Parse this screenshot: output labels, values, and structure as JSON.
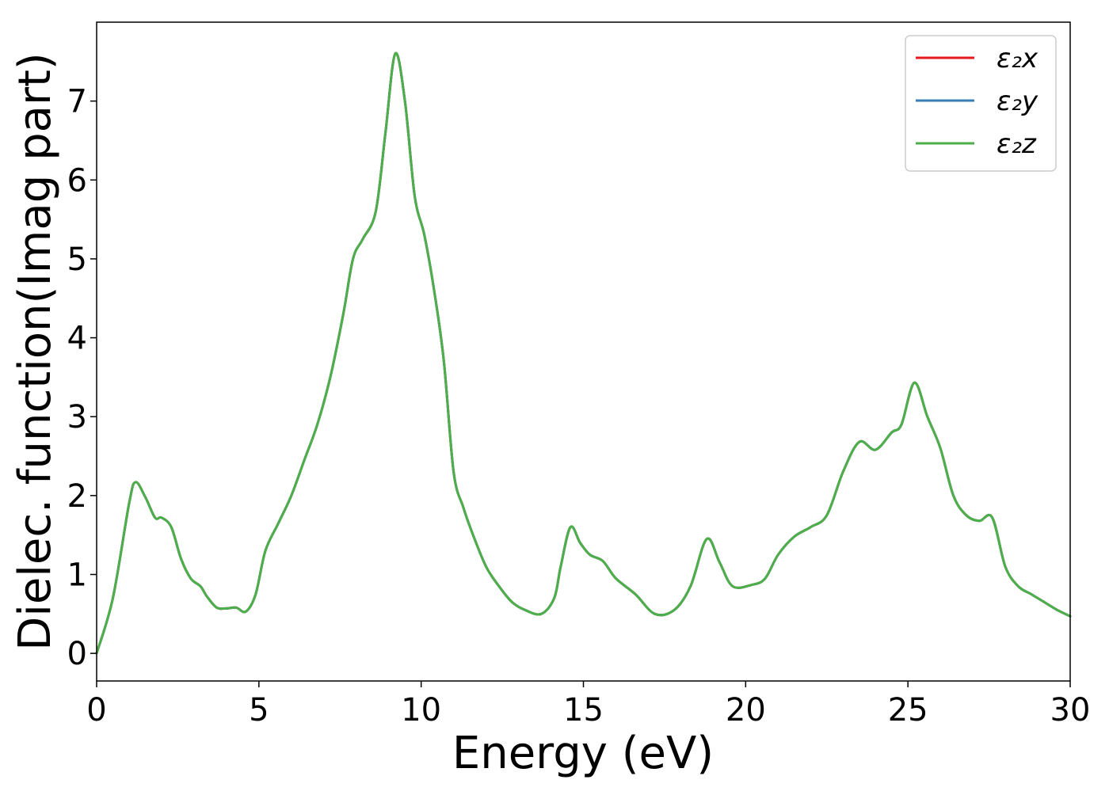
{
  "chart_data": {
    "type": "line",
    "title": "",
    "xlabel": "Energy (eV)",
    "ylabel": "Dielec. function(Imag part)",
    "xlim": [
      0,
      30
    ],
    "ylim": [
      -0.35,
      8.0
    ],
    "xticks": [
      0,
      5,
      10,
      15,
      20,
      25,
      30
    ],
    "yticks": [
      0,
      1,
      2,
      3,
      4,
      5,
      6,
      7
    ],
    "grid": false,
    "legend_position": "top-right",
    "x": [
      0,
      0.5,
      1.0,
      1.2,
      1.5,
      1.8,
      2.0,
      2.3,
      2.6,
      2.9,
      3.2,
      3.4,
      3.7,
      4.0,
      4.3,
      4.6,
      4.9,
      5.2,
      5.6,
      6.0,
      6.4,
      6.8,
      7.2,
      7.6,
      7.9,
      8.2,
      8.6,
      8.9,
      9.2,
      9.5,
      9.8,
      10.1,
      10.4,
      10.7,
      11.0,
      11.3,
      11.6,
      12.0,
      12.4,
      12.8,
      13.2,
      13.7,
      14.1,
      14.3,
      14.6,
      14.9,
      15.2,
      15.6,
      16.0,
      16.6,
      17.2,
      17.8,
      18.3,
      18.8,
      19.2,
      19.6,
      20.2,
      20.6,
      21.0,
      21.5,
      22.0,
      22.5,
      23.0,
      23.5,
      24.0,
      24.5,
      24.8,
      25.2,
      25.6,
      26.0,
      26.4,
      26.8,
      27.2,
      27.6,
      28.0,
      28.4,
      28.8,
      29.2,
      29.6,
      30.0
    ],
    "series": [
      {
        "name": "ε₂x",
        "color": "#e41a1c",
        "values": [
          0.0,
          0.7,
          1.9,
          2.17,
          1.98,
          1.72,
          1.72,
          1.6,
          1.2,
          0.95,
          0.85,
          0.72,
          0.58,
          0.57,
          0.58,
          0.53,
          0.75,
          1.3,
          1.65,
          2.0,
          2.45,
          2.9,
          3.5,
          4.3,
          5.0,
          5.25,
          5.6,
          6.6,
          7.6,
          7.0,
          5.8,
          5.3,
          4.6,
          3.7,
          2.3,
          1.85,
          1.5,
          1.1,
          0.85,
          0.65,
          0.55,
          0.5,
          0.7,
          1.1,
          1.6,
          1.4,
          1.25,
          1.17,
          0.95,
          0.75,
          0.5,
          0.55,
          0.85,
          1.45,
          1.15,
          0.85,
          0.87,
          0.95,
          1.25,
          1.48,
          1.6,
          1.75,
          2.3,
          2.68,
          2.58,
          2.8,
          2.9,
          3.43,
          3.0,
          2.6,
          2.0,
          1.75,
          1.68,
          1.72,
          1.1,
          0.85,
          0.75,
          0.65,
          0.55,
          0.47
        ]
      },
      {
        "name": "ε₂y",
        "color": "#377eb8",
        "values": [
          0.0,
          0.7,
          1.9,
          2.17,
          1.98,
          1.72,
          1.72,
          1.6,
          1.2,
          0.95,
          0.85,
          0.72,
          0.58,
          0.57,
          0.58,
          0.53,
          0.75,
          1.3,
          1.65,
          2.0,
          2.45,
          2.9,
          3.5,
          4.3,
          5.0,
          5.25,
          5.6,
          6.6,
          7.6,
          7.0,
          5.8,
          5.3,
          4.6,
          3.7,
          2.3,
          1.85,
          1.5,
          1.1,
          0.85,
          0.65,
          0.55,
          0.5,
          0.7,
          1.1,
          1.6,
          1.4,
          1.25,
          1.17,
          0.95,
          0.75,
          0.5,
          0.55,
          0.85,
          1.45,
          1.15,
          0.85,
          0.87,
          0.95,
          1.25,
          1.48,
          1.6,
          1.75,
          2.3,
          2.68,
          2.58,
          2.8,
          2.9,
          3.43,
          3.0,
          2.6,
          2.0,
          1.75,
          1.68,
          1.72,
          1.1,
          0.85,
          0.75,
          0.65,
          0.55,
          0.47
        ]
      },
      {
        "name": "ε₂z",
        "color": "#4daf4a",
        "values": [
          0.0,
          0.7,
          1.9,
          2.17,
          1.98,
          1.72,
          1.72,
          1.6,
          1.2,
          0.95,
          0.85,
          0.72,
          0.58,
          0.57,
          0.58,
          0.53,
          0.75,
          1.3,
          1.65,
          2.0,
          2.45,
          2.9,
          3.5,
          4.3,
          5.0,
          5.25,
          5.6,
          6.6,
          7.6,
          7.0,
          5.8,
          5.3,
          4.6,
          3.7,
          2.3,
          1.85,
          1.5,
          1.1,
          0.85,
          0.65,
          0.55,
          0.5,
          0.7,
          1.1,
          1.6,
          1.4,
          1.25,
          1.17,
          0.95,
          0.75,
          0.5,
          0.55,
          0.85,
          1.45,
          1.15,
          0.85,
          0.87,
          0.95,
          1.25,
          1.48,
          1.6,
          1.75,
          2.3,
          2.68,
          2.58,
          2.8,
          2.9,
          3.43,
          3.0,
          2.6,
          2.0,
          1.75,
          1.68,
          1.72,
          1.1,
          0.85,
          0.75,
          0.65,
          0.55,
          0.47
        ]
      }
    ]
  }
}
